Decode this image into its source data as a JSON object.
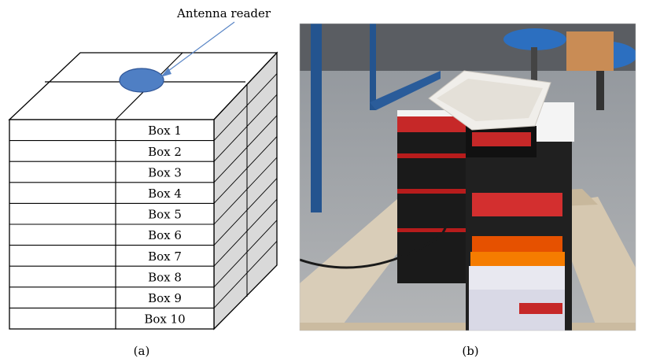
{
  "figure": {
    "panel_a": {
      "caption": "(a)",
      "antenna_label": "Antenna reader",
      "boxes": [
        "Box 1",
        "Box 2",
        "Box 3",
        "Box 4",
        "Box 5",
        "Box 6",
        "Box 7",
        "Box 8",
        "Box 9",
        "Box 10"
      ],
      "colors": {
        "antenna_fill": "#4f7fc4",
        "antenna_stroke": "#2f5597",
        "side_face": "#d9d9d9",
        "arrow": "#5a86c6"
      }
    },
    "panel_b": {
      "caption": "(b)",
      "photo_description_icon": "photo-of-boxes-on-pallet"
    }
  }
}
